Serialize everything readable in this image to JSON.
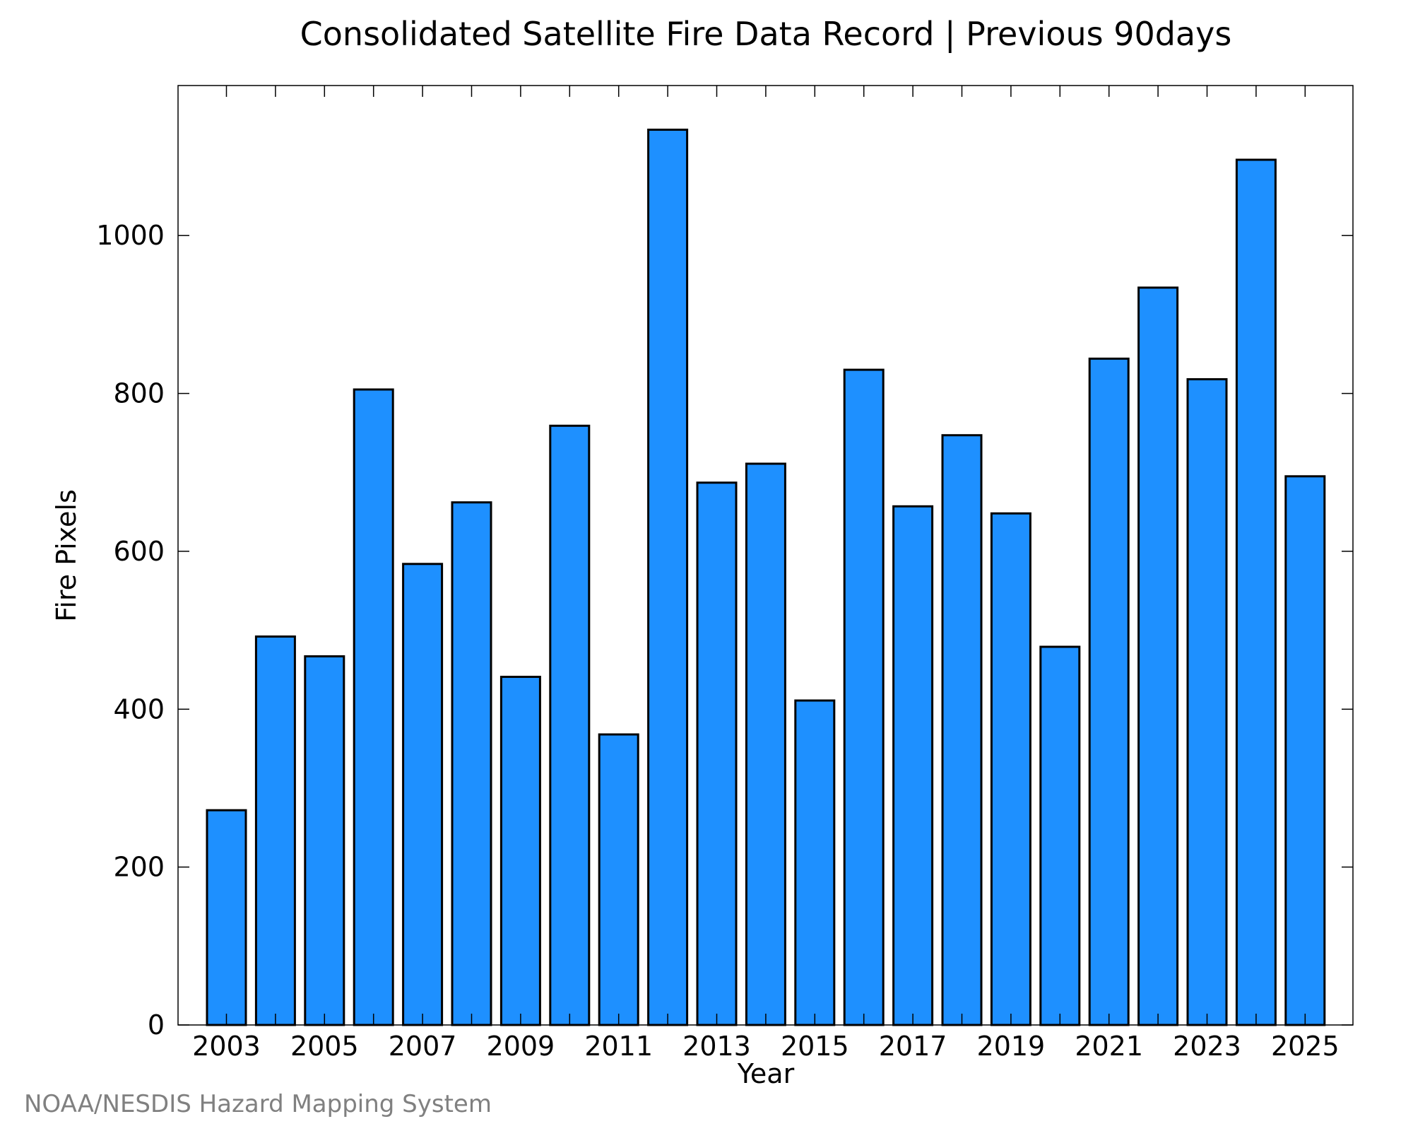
{
  "chart_data": {
    "type": "bar",
    "title": "Consolidated Satellite Fire Data Record | Previous 90days",
    "xlabel": "Year",
    "ylabel": "Fire Pixels",
    "categories": [
      "2003",
      "2004",
      "2005",
      "2006",
      "2007",
      "2008",
      "2009",
      "2010",
      "2011",
      "2012",
      "2013",
      "2014",
      "2015",
      "2016",
      "2017",
      "2018",
      "2019",
      "2020",
      "2021",
      "2022",
      "2023",
      "2024",
      "2025"
    ],
    "values": [
      272,
      492,
      467,
      805,
      584,
      662,
      441,
      759,
      368,
      1134,
      687,
      711,
      411,
      830,
      657,
      747,
      648,
      479,
      844,
      934,
      818,
      1096,
      695
    ],
    "x_tick_labels": [
      "2003",
      "2005",
      "2007",
      "2009",
      "2011",
      "2013",
      "2015",
      "2017",
      "2019",
      "2021",
      "2023",
      "2025"
    ],
    "y_ticks": [
      0,
      200,
      400,
      600,
      800,
      1000
    ],
    "y_tick_labels": [
      "0",
      "200",
      "400",
      "600",
      "800",
      "1000"
    ],
    "ylim": [
      0,
      1190
    ],
    "grid": false,
    "bar_color": "#1e90ff",
    "bar_edge_color": "#000000"
  },
  "credit": "NOAA/NESDIS Hazard Mapping System"
}
